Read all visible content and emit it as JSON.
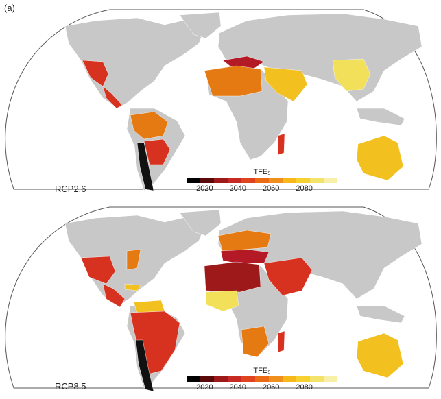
{
  "panel_label": "(a)",
  "colors": {
    "ocean": "#ffffff",
    "land_no_emergence": "#c8c8c8",
    "border": "#ffffff",
    "outline": "#555555"
  },
  "legend": {
    "title": "TFE₅",
    "ticks": [
      "2020",
      "2040",
      "2060",
      "2080"
    ],
    "scale_colors": [
      "#000000",
      "#5a0a0a",
      "#9e1a1a",
      "#c72a23",
      "#e0441e",
      "#ea6a16",
      "#f0901c",
      "#f6b81a",
      "#f7d132",
      "#f3e36a",
      "#f8efa8"
    ]
  },
  "maps": [
    {
      "scenario": "RCP2.6",
      "regions": [
        {
          "name": "Western North America / Mexico",
          "color": "#d7321f"
        },
        {
          "name": "Central America",
          "color": "#d7321f"
        },
        {
          "name": "Amazon",
          "color": "#e57a12"
        },
        {
          "name": "South-eastern South America",
          "color": "#d7321f"
        },
        {
          "name": "Mediterranean",
          "color": "#b31a26"
        },
        {
          "name": "Sahara",
          "color": "#e57a12"
        },
        {
          "name": "Arabian Peninsula",
          "color": "#f3c11f"
        },
        {
          "name": "East Asia",
          "color": "#f3e05a"
        },
        {
          "name": "Madagascar",
          "color": "#d7321f"
        },
        {
          "name": "Australia",
          "color": "#f3c11f"
        },
        {
          "name": "Southern Andes",
          "color": "#111111"
        }
      ]
    },
    {
      "scenario": "RCP8.5",
      "regions": [
        {
          "name": "Western North America / Mexico",
          "color": "#d7321f"
        },
        {
          "name": "Eastern North America",
          "color": "#e57a12"
        },
        {
          "name": "Caribbean",
          "color": "#f3c11f"
        },
        {
          "name": "Northern South America",
          "color": "#f3c11f"
        },
        {
          "name": "Amazon / South America",
          "color": "#d7321f"
        },
        {
          "name": "Western Europe",
          "color": "#e57a12"
        },
        {
          "name": "Mediterranean",
          "color": "#b31a26"
        },
        {
          "name": "Sahara",
          "color": "#9e1a1a"
        },
        {
          "name": "Arabian Peninsula / Middle East",
          "color": "#d7321f"
        },
        {
          "name": "West Africa",
          "color": "#f3e05a"
        },
        {
          "name": "Southern Africa",
          "color": "#e57a12"
        },
        {
          "name": "Madagascar",
          "color": "#d7321f"
        },
        {
          "name": "Australia",
          "color": "#f3c11f"
        },
        {
          "name": "Southern Andes",
          "color": "#111111"
        }
      ]
    }
  ]
}
